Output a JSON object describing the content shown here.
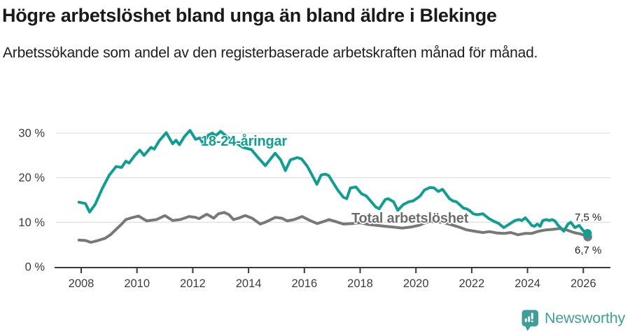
{
  "header": {
    "title": "Högre arbetslöshet bland unga än bland äldre i Blekinge",
    "subtitle": "Arbetssökande som andel av den registerbaserade arbetskraften månad för månad."
  },
  "labels": {
    "youth_series": "18-24-åringar",
    "total_series": "Total arbetslöshet",
    "youth_end_value": "7,5 %",
    "total_end_value": "6,7 %"
  },
  "footer": {
    "brand": "Newsworthy",
    "brand_color": "#3f9f98",
    "logo_icon": "speech-bubble-bar-chart-exclamation"
  },
  "chart_data": {
    "type": "line",
    "title": "Högre arbetslöshet bland unga än bland äldre i Blekinge",
    "subtitle": "Arbetssökande som andel av den registerbaserade arbetskraften månad för månad.",
    "xlabel": "",
    "ylabel": "",
    "unit": "%",
    "grid": true,
    "x_axis": {
      "ticks": [
        2008,
        2010,
        2012,
        2014,
        2016,
        2018,
        2020,
        2022,
        2024,
        2026
      ],
      "labels": [
        "2008",
        "2010",
        "2012",
        "2014",
        "2016",
        "2018",
        "2020",
        "2022",
        "2024",
        "2026"
      ],
      "range": [
        2007.9,
        2026.9
      ]
    },
    "y_axis": {
      "ticks": [
        0,
        10,
        20,
        30
      ],
      "labels": [
        "0 %",
        "10 %",
        "20 %",
        "30 %"
      ],
      "range": [
        0,
        32
      ]
    },
    "series": [
      {
        "name": "18-24-åringar",
        "color": "#119e92",
        "end_value": 7.5,
        "end_value_label": "7,5 %",
        "points": [
          [
            2007.92,
            14.5
          ],
          [
            2008.15,
            14.2
          ],
          [
            2008.3,
            12.3
          ],
          [
            2008.5,
            14.0
          ],
          [
            2008.75,
            17.5
          ],
          [
            2009.0,
            20.5
          ],
          [
            2009.25,
            22.5
          ],
          [
            2009.45,
            22.3
          ],
          [
            2009.6,
            23.7
          ],
          [
            2009.72,
            23.3
          ],
          [
            2009.9,
            24.8
          ],
          [
            2010.1,
            26.2
          ],
          [
            2010.25,
            25.0
          ],
          [
            2010.5,
            26.8
          ],
          [
            2010.62,
            26.4
          ],
          [
            2010.8,
            28.3
          ],
          [
            2011.05,
            30.1
          ],
          [
            2011.28,
            27.6
          ],
          [
            2011.4,
            28.4
          ],
          [
            2011.52,
            27.4
          ],
          [
            2011.7,
            29.2
          ],
          [
            2011.9,
            30.6
          ],
          [
            2012.1,
            28.6
          ],
          [
            2012.25,
            28.9
          ],
          [
            2012.38,
            27.6
          ],
          [
            2012.55,
            29.5
          ],
          [
            2012.7,
            30.0
          ],
          [
            2012.82,
            29.4
          ],
          [
            2013.0,
            30.4
          ],
          [
            2013.2,
            29.3
          ],
          [
            2013.5,
            28.0
          ],
          [
            2013.8,
            26.8
          ],
          [
            2014.1,
            26.3
          ],
          [
            2014.3,
            24.8
          ],
          [
            2014.6,
            22.7
          ],
          [
            2014.8,
            24.3
          ],
          [
            2014.95,
            25.5
          ],
          [
            2015.15,
            24.0
          ],
          [
            2015.32,
            21.6
          ],
          [
            2015.5,
            24.0
          ],
          [
            2015.75,
            24.5
          ],
          [
            2015.9,
            24.2
          ],
          [
            2016.1,
            22.6
          ],
          [
            2016.3,
            20.3
          ],
          [
            2016.45,
            18.5
          ],
          [
            2016.6,
            20.6
          ],
          [
            2016.75,
            20.8
          ],
          [
            2016.87,
            20.5
          ],
          [
            2017.05,
            18.7
          ],
          [
            2017.2,
            17.2
          ],
          [
            2017.4,
            15.6
          ],
          [
            2017.52,
            15.3
          ],
          [
            2017.65,
            17.7
          ],
          [
            2017.85,
            17.9
          ],
          [
            2018.05,
            16.4
          ],
          [
            2018.22,
            15.9
          ],
          [
            2018.4,
            14.6
          ],
          [
            2018.55,
            13.5
          ],
          [
            2018.68,
            13.0
          ],
          [
            2018.9,
            15.1
          ],
          [
            2019.0,
            15.3
          ],
          [
            2019.2,
            14.6
          ],
          [
            2019.35,
            12.7
          ],
          [
            2019.55,
            14.0
          ],
          [
            2019.75,
            14.6
          ],
          [
            2019.9,
            14.8
          ],
          [
            2020.02,
            15.3
          ],
          [
            2020.15,
            15.9
          ],
          [
            2020.3,
            17.2
          ],
          [
            2020.5,
            17.8
          ],
          [
            2020.65,
            17.7
          ],
          [
            2020.8,
            16.9
          ],
          [
            2020.95,
            17.4
          ],
          [
            2021.05,
            16.6
          ],
          [
            2021.2,
            15.3
          ],
          [
            2021.32,
            14.8
          ],
          [
            2021.45,
            14.6
          ],
          [
            2021.56,
            14.0
          ],
          [
            2021.7,
            13.2
          ],
          [
            2021.82,
            13.0
          ],
          [
            2021.95,
            12.5
          ],
          [
            2022.05,
            11.9
          ],
          [
            2022.2,
            11.7
          ],
          [
            2022.4,
            11.9
          ],
          [
            2022.6,
            10.9
          ],
          [
            2022.8,
            10.2
          ],
          [
            2022.95,
            9.8
          ],
          [
            2023.15,
            8.8
          ],
          [
            2023.35,
            9.6
          ],
          [
            2023.55,
            10.4
          ],
          [
            2023.7,
            10.6
          ],
          [
            2023.8,
            10.4
          ],
          [
            2023.92,
            11.0
          ],
          [
            2024.05,
            10.1
          ],
          [
            2024.15,
            9.3
          ],
          [
            2024.25,
            9.1
          ],
          [
            2024.35,
            9.6
          ],
          [
            2024.45,
            9.1
          ],
          [
            2024.55,
            10.4
          ],
          [
            2024.68,
            10.6
          ],
          [
            2024.78,
            10.4
          ],
          [
            2024.88,
            10.6
          ],
          [
            2024.98,
            10.3
          ],
          [
            2025.1,
            9.3
          ],
          [
            2025.3,
            8.0
          ],
          [
            2025.45,
            9.6
          ],
          [
            2025.55,
            10.0
          ],
          [
            2025.7,
            8.8
          ],
          [
            2025.85,
            9.3
          ],
          [
            2026.0,
            8.1
          ],
          [
            2026.15,
            7.5
          ]
        ]
      },
      {
        "name": "Total arbetslöshet",
        "color": "#787878",
        "end_value": 6.7,
        "end_value_label": "6,7 %",
        "points": [
          [
            2007.92,
            6.0
          ],
          [
            2008.15,
            5.9
          ],
          [
            2008.35,
            5.5
          ],
          [
            2008.6,
            5.9
          ],
          [
            2008.85,
            6.4
          ],
          [
            2009.05,
            7.2
          ],
          [
            2009.25,
            8.4
          ],
          [
            2009.45,
            9.6
          ],
          [
            2009.6,
            10.6
          ],
          [
            2009.8,
            11.0
          ],
          [
            2010.05,
            11.4
          ],
          [
            2010.35,
            10.3
          ],
          [
            2010.7,
            10.6
          ],
          [
            2011.0,
            11.5
          ],
          [
            2011.28,
            10.4
          ],
          [
            2011.55,
            10.6
          ],
          [
            2011.87,
            11.3
          ],
          [
            2012.1,
            11.1
          ],
          [
            2012.22,
            10.8
          ],
          [
            2012.5,
            11.8
          ],
          [
            2012.62,
            11.4
          ],
          [
            2012.75,
            10.9
          ],
          [
            2012.92,
            11.9
          ],
          [
            2013.13,
            12.2
          ],
          [
            2013.3,
            11.7
          ],
          [
            2013.46,
            10.6
          ],
          [
            2013.63,
            10.9
          ],
          [
            2013.88,
            11.5
          ],
          [
            2014.13,
            10.9
          ],
          [
            2014.42,
            9.6
          ],
          [
            2014.63,
            10.1
          ],
          [
            2014.96,
            11.1
          ],
          [
            2015.2,
            10.9
          ],
          [
            2015.38,
            10.3
          ],
          [
            2015.63,
            10.6
          ],
          [
            2015.92,
            11.3
          ],
          [
            2016.2,
            10.4
          ],
          [
            2016.46,
            9.7
          ],
          [
            2016.7,
            10.2
          ],
          [
            2016.88,
            10.6
          ],
          [
            2017.1,
            10.2
          ],
          [
            2017.4,
            9.6
          ],
          [
            2017.7,
            9.7
          ],
          [
            2018.0,
            9.9
          ],
          [
            2018.3,
            9.5
          ],
          [
            2018.6,
            9.3
          ],
          [
            2018.9,
            9.1
          ],
          [
            2019.2,
            8.9
          ],
          [
            2019.5,
            8.7
          ],
          [
            2019.8,
            8.9
          ],
          [
            2020.1,
            9.3
          ],
          [
            2020.4,
            10.0
          ],
          [
            2020.7,
            10.2
          ],
          [
            2021.0,
            9.9
          ],
          [
            2021.3,
            9.4
          ],
          [
            2021.6,
            8.8
          ],
          [
            2021.82,
            8.3
          ],
          [
            2022.1,
            8.0
          ],
          [
            2022.4,
            7.7
          ],
          [
            2022.64,
            7.9
          ],
          [
            2022.9,
            7.6
          ],
          [
            2023.15,
            7.5
          ],
          [
            2023.4,
            7.7
          ],
          [
            2023.66,
            7.2
          ],
          [
            2023.9,
            7.5
          ],
          [
            2024.15,
            7.5
          ],
          [
            2024.4,
            8.0
          ],
          [
            2024.66,
            8.3
          ],
          [
            2024.9,
            8.4
          ],
          [
            2025.15,
            8.6
          ],
          [
            2025.4,
            8.3
          ],
          [
            2025.66,
            7.7
          ],
          [
            2025.9,
            7.4
          ],
          [
            2026.16,
            6.7
          ]
        ]
      }
    ],
    "legend_position": "inline-labels",
    "colors": {
      "youth": "#119e92",
      "total": "#787878",
      "gridline": "#e2e2e2",
      "axis": "#3a3a3a",
      "tick_text": "#3c3c3c"
    }
  }
}
